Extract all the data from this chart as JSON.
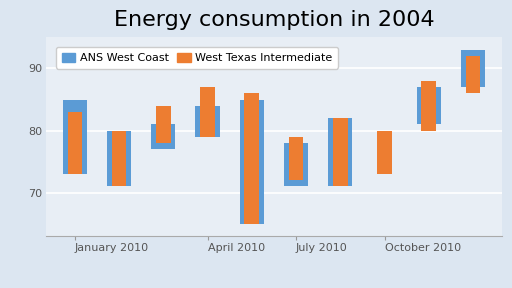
{
  "title": "Energy consumption in 2004",
  "title_fontsize": 16,
  "legend_labels": [
    "ANS West Coast",
    "West Texas Intermediate"
  ],
  "colors": [
    "#5b9bd5",
    "#ed7d31"
  ],
  "background_color": "#dce6f1",
  "plot_bg_color": "#e8eef5",
  "ylim": [
    63,
    95
  ],
  "yticks": [
    70,
    80,
    90
  ],
  "bar_width": 0.55,
  "series": {
    "ANS West Coast": {
      "low": [
        73,
        71,
        77,
        79,
        65,
        71,
        71,
        80,
        81,
        87
      ],
      "high": [
        85,
        80,
        81,
        84,
        85,
        78,
        82,
        80,
        87,
        93
      ]
    },
    "West Texas Intermediate": {
      "low": [
        73,
        71,
        78,
        79,
        65,
        72,
        71,
        73,
        80,
        86
      ],
      "high": [
        83,
        80,
        84,
        87,
        86,
        79,
        82,
        80,
        88,
        92
      ]
    }
  },
  "n_bars": 10,
  "xtick_label_positions": [
    0,
    3,
    5,
    7
  ],
  "xtick_labels": [
    "January 2010",
    "April 2010",
    "July 2010",
    "October 2010"
  ]
}
